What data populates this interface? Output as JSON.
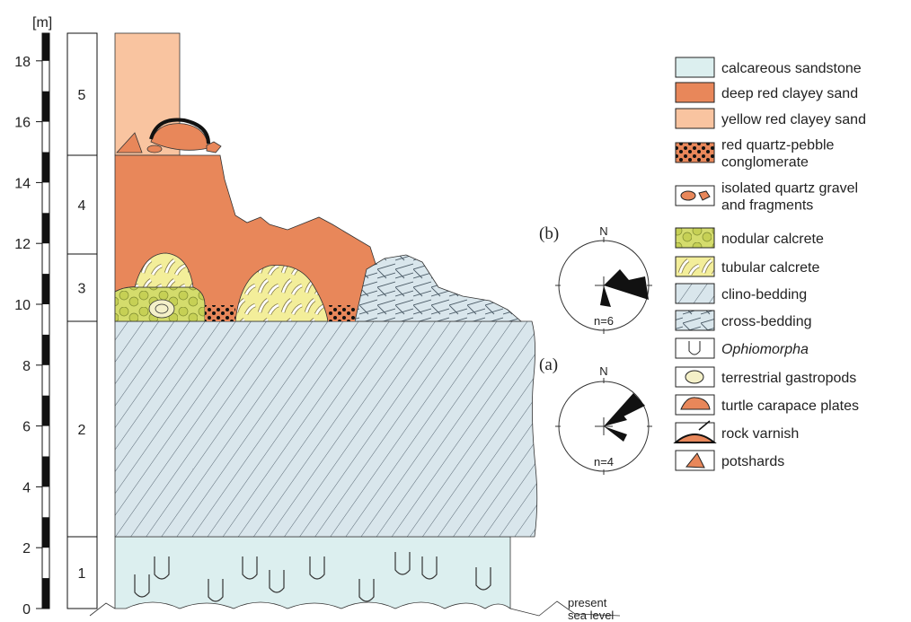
{
  "scale": {
    "unit": "[m]",
    "ticks": [
      0,
      2,
      4,
      6,
      8,
      10,
      12,
      14,
      16,
      18
    ]
  },
  "units": [
    "1",
    "2",
    "3",
    "4",
    "5"
  ],
  "legend": {
    "items": [
      {
        "lines": [
          "calcareous sandstone"
        ]
      },
      {
        "lines": [
          "deep red clayey sand"
        ]
      },
      {
        "lines": [
          "yellow red clayey sand"
        ]
      },
      {
        "lines": [
          "red quartz-pebble",
          "conglomerate"
        ]
      },
      {
        "lines": [
          "isolated quartz gravel",
          "and fragments"
        ]
      },
      {
        "lines": [
          "nodular calcrete"
        ]
      },
      {
        "lines": [
          "tubular calcrete"
        ]
      },
      {
        "lines": [
          "clino-bedding"
        ]
      },
      {
        "lines": [
          "cross-bedding"
        ]
      },
      {
        "lines": [
          "Ophiomorpha"
        ],
        "italic": true
      },
      {
        "lines": [
          "terrestrial gastropods"
        ]
      },
      {
        "lines": [
          "turtle carapace plates"
        ]
      },
      {
        "lines": [
          "rock varnish"
        ]
      },
      {
        "lines": [
          "potshards"
        ]
      }
    ]
  },
  "rose_b": {
    "label": "(b)",
    "north": "N",
    "count": "n=6"
  },
  "rose_a": {
    "label": "(a)",
    "north": "N",
    "count": "n=4"
  },
  "sea_level": [
    "present",
    "sea level"
  ]
}
